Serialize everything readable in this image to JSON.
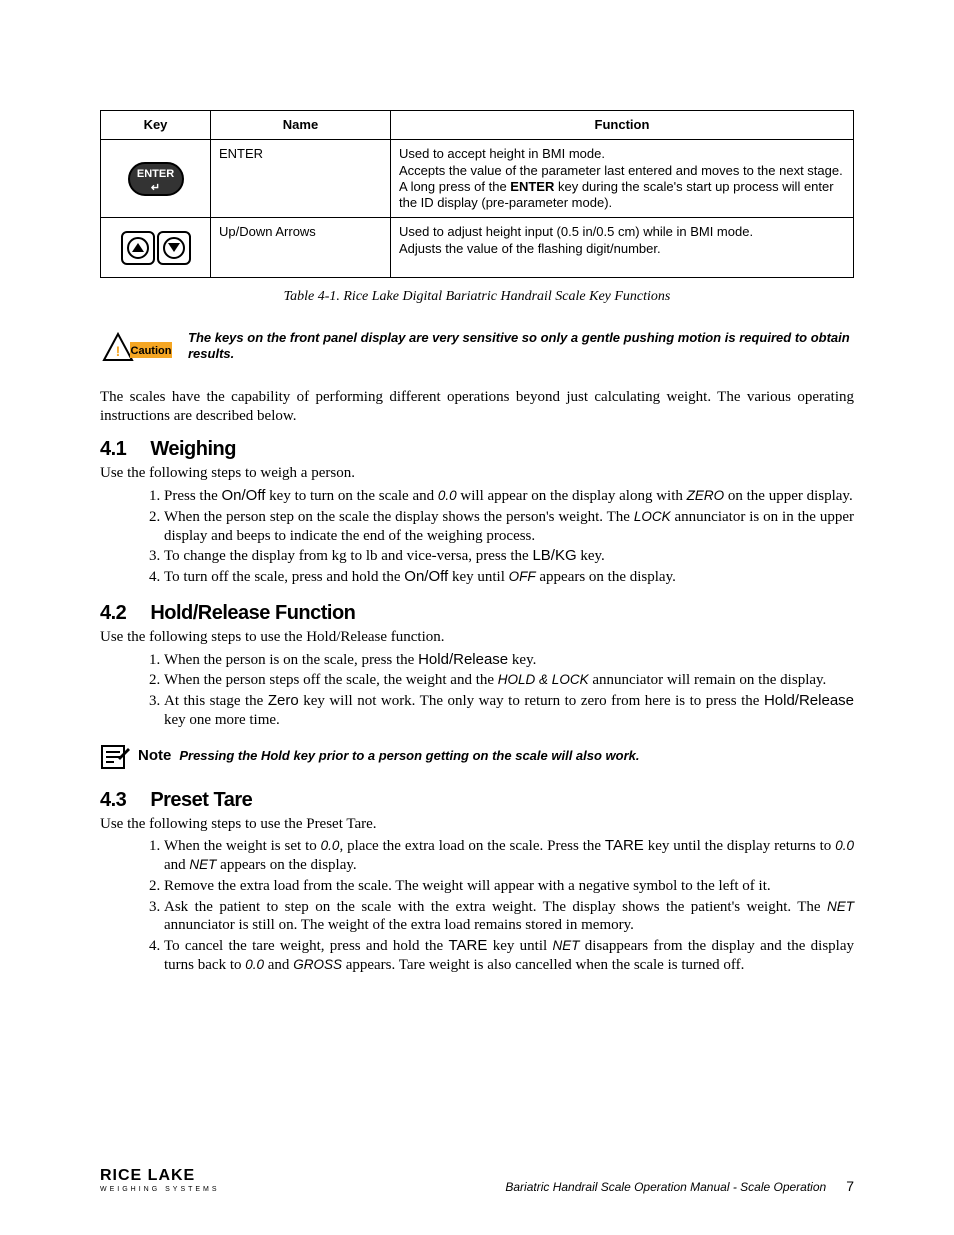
{
  "table": {
    "headers": [
      "Key",
      "Name",
      "Function"
    ],
    "rows": [
      {
        "key_icon": "enter",
        "name": "ENTER",
        "func_lines": [
          "Used to accept height in BMI mode.",
          "Accepts the value of the parameter last entered and moves to the next stage.",
          "A long press of the <b>ENTER</b> key during the scale's start up process will enter the ID display (pre-parameter mode)."
        ]
      },
      {
        "key_icon": "arrows",
        "name": "Up/Down Arrows",
        "func_lines": [
          "Used to adjust height input (0.5 in/0.5 cm) while in BMI mode.",
          "Adjusts the value of the flashing digit/number."
        ]
      }
    ],
    "caption": "Table 4-1. Rice Lake Digital Bariatric Handrail Scale Key Functions"
  },
  "caution": {
    "label": "Caution",
    "text": "The keys on the front panel display are very sensitive so only a gentle pushing motion is required to obtain results."
  },
  "intro": "The scales have the capability of performing different operations beyond just calculating weight. The various operating instructions are described below.",
  "s41": {
    "num": "4.1",
    "title": "Weighing",
    "lead": "Use the following steps to weigh a person.",
    "items": [
      "Press the <span class='sans'>On/Off</span> key to turn on the scale and <span class='ann'>0.0</span> will appear on the display along with <span class='ann'>ZERO</span> on the upper display.",
      "When the person step on the scale the display shows the person's weight. The <span class='ann'>LOCK</span> annunciator is on in the upper display and beeps to indicate the end of the weighing process.",
      "To change the display from kg to lb and vice-versa, press the <span class='sans'>LB/KG</span> key.",
      "To turn off the scale, press and hold the <span class='sans'>On/Off</span> key until <span class='ann'>OFF</span> appears on the display."
    ]
  },
  "s42": {
    "num": "4.2",
    "title": "Hold/Release Function",
    "lead": "Use the following steps to use the Hold/Release function.",
    "items": [
      "When the person is on the scale, press the <span class='sans'>Hold/Release</span> key.",
      "When the person steps off the scale, the weight and the <span class='ann'>HOLD &amp; LOCK</span> annunciator will remain on the display.",
      "At this stage the <span class='sans'>Zero</span> key will not work. The only way to return to zero from here is to press the <span class='sans'>Hold/Release</span> key one more time."
    ]
  },
  "note": {
    "label": "Note",
    "text": "Pressing the Hold key prior to a person getting on the scale will also work."
  },
  "s43": {
    "num": "4.3",
    "title": "Preset Tare",
    "lead": "Use the following steps to use the Preset Tare.",
    "items": [
      "When the weight is set to <span class='ann'>0.0</span>, place the extra load on the scale. Press the <span class='sans'>TARE</span> key until the display returns to <span class='ann'>0.0</span> and <span class='ann'>NET</span> appears on the display.",
      "Remove the extra load from the scale. The weight will appear with a negative symbol to the left of it.",
      "Ask the patient to step on the scale with the extra weight. The display shows the patient's weight. The <span class='ann'>NET</span> annunciator is still on. The weight of the extra load remains stored in memory.",
      "To cancel the tare weight, press and hold the <span class='sans'>TARE</span> key until <span class='ann'>NET</span> disappears from the display and the display turns back to <span class='ann'>0.0</span> and <span class='ann'>GROSS</span> appears. Tare weight is also cancelled when the scale is turned off."
    ]
  },
  "footer": {
    "logo_main": "RICE LAKE",
    "logo_sub": "WEIGHING SYSTEMS",
    "doc": "Bariatric Handrail Scale Operation Manual - Scale Operation",
    "page": "7"
  }
}
